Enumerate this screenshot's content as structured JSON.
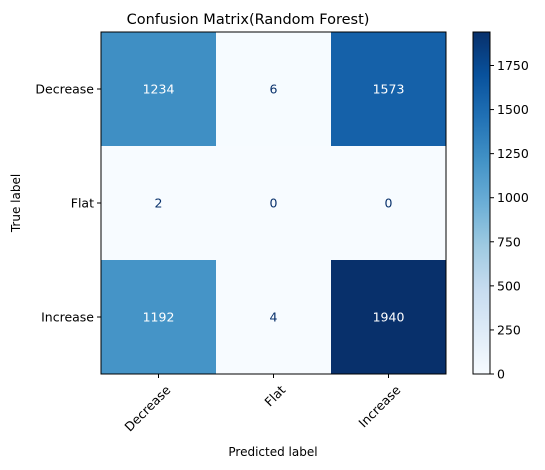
{
  "chart_data": {
    "type": "heatmap",
    "title": "Confusion Matrix(Random Forest)",
    "xlabel": "Predicted label",
    "ylabel": "True label",
    "x_categories": [
      "Decrease",
      "Flat",
      "Increase"
    ],
    "y_categories": [
      "Decrease",
      "Flat",
      "Increase"
    ],
    "values": [
      [
        1234,
        6,
        1573
      ],
      [
        2,
        0,
        0
      ],
      [
        1192,
        4,
        1940
      ]
    ],
    "colormap": "Blues",
    "color_range": [
      0,
      1940
    ],
    "colorbar_ticks": [
      0,
      250,
      500,
      750,
      1000,
      1250,
      1500,
      1750
    ],
    "colors": {
      "low": "#f7fbff",
      "high": "#08306b",
      "text_dark": "#08306b",
      "text_light": "#ffffff"
    }
  }
}
